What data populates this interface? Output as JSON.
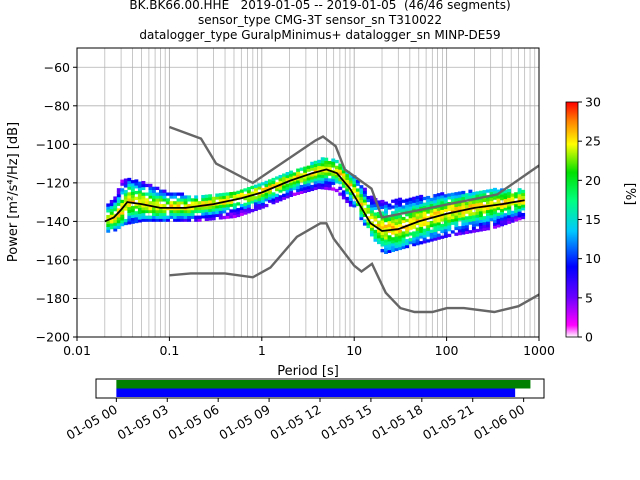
{
  "title_lines": [
    "BK.BK66.00.HHE   2019-01-05 -- 2019-01-05  (46/46 segments)",
    "sensor_type CMG-3T sensor_sn T310022",
    "datalogger_type GuralpMinimus+ datalogger_sn MINP-DE59"
  ],
  "chart_data": {
    "type": "heatmap",
    "xlabel": "Period [s]",
    "ylabel": "Power [m²/s⁴/Hz] [dB]",
    "xscale": "log",
    "xlim": [
      0.01,
      1000
    ],
    "ylim": [
      -200,
      -50
    ],
    "x_ticks": [
      0.01,
      0.1,
      1,
      10,
      100,
      1000
    ],
    "x_tick_labels": [
      "0.01",
      "0.1",
      "1",
      "10",
      "100",
      "1000"
    ],
    "y_ticks": [
      -200,
      -180,
      -160,
      -140,
      -120,
      -100,
      -80,
      -60
    ],
    "grid": true,
    "colorbar": {
      "label": "[%]",
      "min": 0,
      "max": 30,
      "ticks": [
        0,
        5,
        10,
        15,
        20,
        25,
        30
      ],
      "colormap": "pqlx"
    },
    "new_high_noise_model": [
      [
        0.1,
        -91
      ],
      [
        0.22,
        -97
      ],
      [
        0.32,
        -110
      ],
      [
        0.8,
        -120
      ],
      [
        3.8,
        -98
      ],
      [
        4.6,
        -96
      ],
      [
        6.3,
        -101
      ],
      [
        7.9,
        -113
      ],
      [
        15.4,
        -123
      ],
      [
        20,
        -138
      ],
      [
        354.8,
        -126
      ],
      [
        1000,
        -111
      ]
    ],
    "new_low_noise_model": [
      [
        0.1,
        -168
      ],
      [
        0.17,
        -167
      ],
      [
        0.4,
        -167
      ],
      [
        0.8,
        -169
      ],
      [
        1.24,
        -164
      ],
      [
        2.4,
        -148
      ],
      [
        4.3,
        -141
      ],
      [
        5,
        -141
      ],
      [
        6,
        -149
      ],
      [
        10,
        -163
      ],
      [
        12,
        -166
      ],
      [
        15.6,
        -162
      ],
      [
        21.9,
        -177
      ],
      [
        31.6,
        -185
      ],
      [
        45,
        -187
      ],
      [
        70,
        -187
      ],
      [
        101,
        -185
      ],
      [
        154,
        -185
      ],
      [
        328,
        -187
      ],
      [
        600,
        -184
      ],
      [
        1000,
        -178
      ]
    ],
    "mode_line": [
      [
        0.02,
        -140
      ],
      [
        0.025,
        -138
      ],
      [
        0.03,
        -134
      ],
      [
        0.035,
        -130
      ],
      [
        0.05,
        -131
      ],
      [
        0.08,
        -133
      ],
      [
        0.15,
        -133
      ],
      [
        0.3,
        -131
      ],
      [
        0.6,
        -128
      ],
      [
        1,
        -125
      ],
      [
        2,
        -119
      ],
      [
        3.5,
        -115
      ],
      [
        5,
        -113
      ],
      [
        6.5,
        -115
      ],
      [
        9,
        -123
      ],
      [
        12,
        -133
      ],
      [
        15,
        -141
      ],
      [
        20,
        -145
      ],
      [
        30,
        -144
      ],
      [
        50,
        -140
      ],
      [
        100,
        -136
      ],
      [
        200,
        -133
      ],
      [
        400,
        -131
      ],
      [
        700,
        -129
      ]
    ],
    "density_band": [
      [
        0.019,
        -146,
        -132
      ],
      [
        0.025,
        -145,
        -128
      ],
      [
        0.03,
        -142,
        -118
      ],
      [
        0.05,
        -140,
        -120
      ],
      [
        0.1,
        -140,
        -126
      ],
      [
        0.2,
        -140,
        -127
      ],
      [
        0.5,
        -138,
        -125
      ],
      [
        1,
        -133,
        -120
      ],
      [
        2,
        -127,
        -114
      ],
      [
        4,
        -123,
        -108
      ],
      [
        6,
        -124,
        -109
      ],
      [
        10,
        -135,
        -118
      ],
      [
        15,
        -148,
        -128
      ],
      [
        20,
        -157,
        -130
      ],
      [
        40,
        -153,
        -128
      ],
      [
        100,
        -148,
        -126
      ],
      [
        300,
        -144,
        -124
      ],
      [
        700,
        -138,
        -124
      ]
    ],
    "availability": {
      "x_ticks": [
        "01-05 00",
        "01-05 03",
        "01-05 06",
        "01-05 09",
        "01-05 12",
        "01-05 15",
        "01-05 18",
        "01-05 21",
        "01-06 00"
      ],
      "bars": [
        {
          "color": "#008000",
          "start_h": 0,
          "end_h": 24.4
        },
        {
          "color": "#0000ff",
          "start_h": 0,
          "end_h": 23.5
        }
      ],
      "xlim_h": [
        -1.2,
        25.2
      ]
    }
  }
}
